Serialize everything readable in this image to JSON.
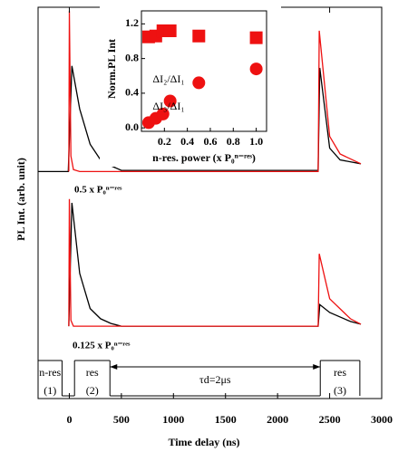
{
  "chart_data": [
    {
      "type": "line",
      "xlabel": "Time delay (ns)",
      "ylabel": "PL Int. (arb. unit)",
      "xlim": [
        -300,
        3000
      ],
      "ylim": [
        0,
        100
      ],
      "xticks": [
        0,
        500,
        1000,
        1500,
        2000,
        2500,
        3000
      ],
      "series": [
        {
          "color": "#000000",
          "x": [
            -300,
            -10,
            25,
            100,
            200,
            300,
            400,
            500,
            2390,
            2405,
            2500,
            2600,
            2800
          ],
          "values": [
            58,
            58,
            85,
            74,
            65,
            61,
            59.5,
            58.3,
            58.3,
            84.5,
            64,
            61,
            60
          ]
        },
        {
          "color": "#ee1111",
          "x": [
            -5,
            0,
            15,
            40,
            100,
            500,
            2390,
            2400,
            2500,
            2600,
            2800
          ],
          "values": [
            58,
            99,
            62,
            58.5,
            58,
            58,
            58,
            94,
            67,
            62.5,
            60
          ]
        },
        {
          "color": "#000000",
          "x": [
            -5,
            25,
            100,
            200,
            300,
            400,
            500,
            2390,
            2405,
            2500,
            2700,
            2800
          ],
          "values": [
            18.5,
            50,
            32,
            23,
            20.4,
            19.2,
            18.5,
            18.5,
            24,
            22,
            19.7,
            19
          ]
        },
        {
          "color": "#ee1111",
          "x": [
            -5,
            0,
            15,
            40,
            500,
            2390,
            2400,
            2500,
            2700,
            2800
          ],
          "values": [
            18.5,
            51,
            20,
            18.5,
            18.5,
            18.5,
            37,
            25.5,
            20.4,
            19
          ]
        }
      ],
      "annotations": [
        "0.5 x P₀ⁿ⁻ʳᵉˢ",
        "0.125 x P₀ⁿ⁻ʳᵉˢ"
      ],
      "pulses": [
        {
          "label": "n-res",
          "number": "(1)",
          "start": -300,
          "end": -70
        },
        {
          "label": "res",
          "number": "(2)",
          "start": 50,
          "end": 390
        },
        {
          "label": "res",
          "number": "(3)",
          "start": 2410,
          "end": 2790
        }
      ],
      "delay": {
        "label": "τd=2μs",
        "start": 390,
        "end": 2410
      }
    },
    {
      "type": "scatter",
      "xlabel": "n-res. power (x P₀ⁿ⁻ʳᵉˢ)",
      "ylabel": "Norm.PL Int",
      "xlim": [
        0,
        1.09
      ],
      "ylim": [
        -0.04,
        1.35
      ],
      "xticks": [
        0.2,
        0.4,
        0.6,
        0.8,
        {
          "value": 1,
          "label": "1.0"
        }
      ],
      "yticks": [
        {
          "value": 0,
          "label": "0.0"
        },
        0.4,
        0.8,
        1.2
      ],
      "series": [
        {
          "name": "ΔI₂/ΔI₁",
          "marker": "square",
          "color": "#ee1111",
          "x": [
            0.0625,
            0.125,
            0.1875,
            0.25,
            0.5,
            1.0
          ],
          "values": [
            1.05,
            1.06,
            1.12,
            1.12,
            1.06,
            1.04
          ]
        },
        {
          "name": "ΔI₃/ΔI₁",
          "marker": "circle",
          "color": "#ee1111",
          "x": [
            0.0625,
            0.125,
            0.1875,
            0.25,
            0.5,
            1.0
          ],
          "values": [
            0.06,
            0.11,
            0.16,
            0.31,
            0.52,
            0.68
          ]
        }
      ]
    }
  ]
}
